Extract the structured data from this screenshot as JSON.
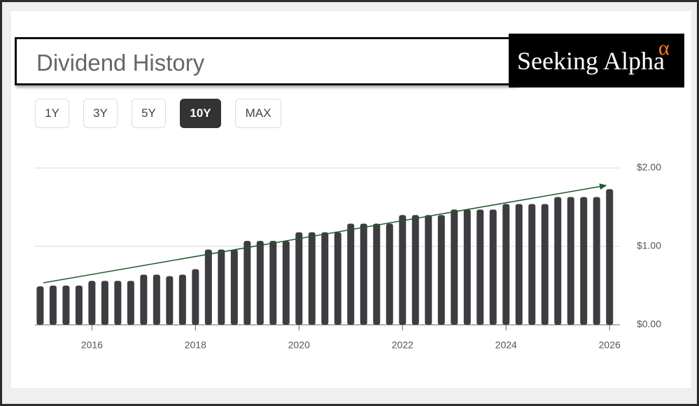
{
  "header": {
    "title": "Dividend History",
    "logo": {
      "text": "Seeking Alpha",
      "symbol": "α"
    }
  },
  "range_buttons": [
    {
      "label": "1Y",
      "active": false
    },
    {
      "label": "3Y",
      "active": false
    },
    {
      "label": "5Y",
      "active": false
    },
    {
      "label": "10Y",
      "active": true
    },
    {
      "label": "MAX",
      "active": false
    }
  ],
  "chart_data": {
    "type": "bar",
    "color": "#3d3c40",
    "x": [
      2015,
      2015.25,
      2015.5,
      2015.75,
      2016,
      2016.25,
      2016.5,
      2016.75,
      2017,
      2017.25,
      2017.5,
      2017.75,
      2018,
      2018.25,
      2018.5,
      2018.75,
      2019,
      2019.25,
      2019.5,
      2019.75,
      2020,
      2020.25,
      2020.5,
      2020.75,
      2021,
      2021.25,
      2021.5,
      2021.75,
      2022,
      2022.25,
      2022.5,
      2022.75,
      2023,
      2023.25,
      2023.5,
      2023.75,
      2024,
      2024.25,
      2024.5,
      2024.75,
      2025,
      2025.25,
      2025.5,
      2025.75,
      2026
    ],
    "values": [
      0.49,
      0.5,
      0.5,
      0.5,
      0.56,
      0.56,
      0.56,
      0.56,
      0.64,
      0.64,
      0.62,
      0.64,
      0.71,
      0.96,
      0.96,
      0.96,
      1.07,
      1.07,
      1.07,
      1.07,
      1.18,
      1.18,
      1.18,
      1.18,
      1.29,
      1.29,
      1.29,
      1.29,
      1.4,
      1.4,
      1.4,
      1.4,
      1.47,
      1.47,
      1.47,
      1.47,
      1.54,
      1.54,
      1.54,
      1.54,
      1.63,
      1.63,
      1.63,
      1.63,
      1.73
    ],
    "xlim": [
      2014.9,
      2026.2
    ],
    "xticks": [
      2016,
      2018,
      2020,
      2022,
      2024,
      2026
    ],
    "ylim": [
      0,
      2
    ],
    "yticks": [
      {
        "value": 0,
        "label": "$0.00"
      },
      {
        "value": 1,
        "label": "$1.00"
      },
      {
        "value": 2,
        "label": "$2.00"
      }
    ],
    "grid": true
  }
}
